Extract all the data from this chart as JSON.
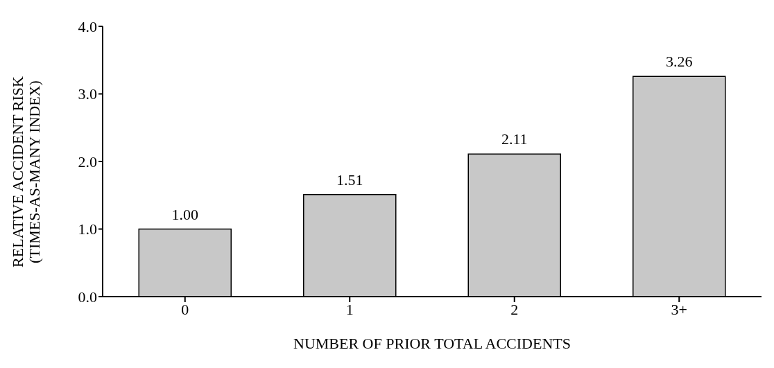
{
  "chart_data": {
    "type": "bar",
    "xlabel": "NUMBER OF PRIOR TOTAL ACCIDENTS",
    "ylabel": "RELATIVE ACCIDENT RISK\n(TIMES-AS-MANY INDEX)",
    "categories": [
      "0",
      "1",
      "2",
      "3+"
    ],
    "values": [
      1.0,
      1.51,
      2.11,
      3.26
    ],
    "value_labels": [
      "1.00",
      "1.51",
      "2.11",
      "3.26"
    ],
    "color": "#c8c8c8",
    "ylim": [
      0,
      4
    ],
    "yticks": [
      {
        "value": 0,
        "label": "0.0"
      },
      {
        "value": 1,
        "label": "1.0"
      },
      {
        "value": 2,
        "label": "2.0"
      },
      {
        "value": 3,
        "label": "3.0"
      },
      {
        "value": 4,
        "label": "4.0"
      }
    ],
    "grid": false
  }
}
